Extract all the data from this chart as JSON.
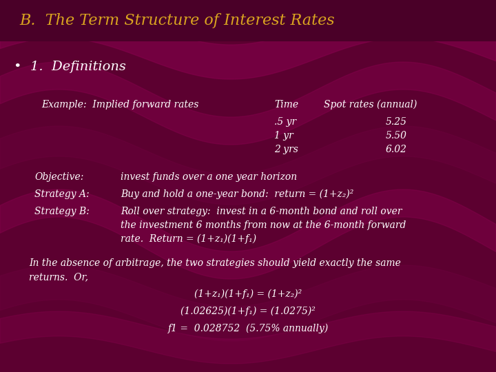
{
  "title": "B.  The Term Structure of Interest Rates",
  "title_color": "#DAA520",
  "bg_color": "#5C0030",
  "wave_color": "#7A0040",
  "text_color": "#FFFFFF",
  "subtitle": "•  1.  Definitions",
  "subtitle_color": "#FFFFFF",
  "example_label": "Example:  Implied forward rates",
  "table_header": [
    "Time",
    "Spot rates (annual)"
  ],
  "table_rows": [
    [
      ".5 yr",
      "5.25"
    ],
    [
      "1 yr",
      "5.50"
    ],
    [
      "2 yrs",
      "6.02"
    ]
  ],
  "objective_label": "Objective:",
  "objective_text": "invest funds over a one year horizon",
  "strategy_a_label": "Strategy A:",
  "strategy_a_text": "Buy and hold a one-year bond:  return = (1+z₂)²",
  "strategy_b_label": "Strategy B:",
  "strategy_b_lines": [
    "Roll over strategy:  invest in a 6-month bond and roll over",
    "the investment 6 months from now at the 6-month forward",
    "rate.  Return = (1+z₁)(1+f₁)"
  ],
  "arbitrage_line1": "In the absence of arbitrage, the two strategies should yield exactly the same",
  "arbitrage_line2": "returns.  Or,",
  "eq1": "(1+z₁)(1+f₁) = (1+z₂)²",
  "eq2": "(1.02625)(1+f₁) = (1.0275)²",
  "eq3": "f1 =  0.028752  (5.75% annually)",
  "font_size_title": 16,
  "font_size_subtitle": 14,
  "font_size_body": 10
}
